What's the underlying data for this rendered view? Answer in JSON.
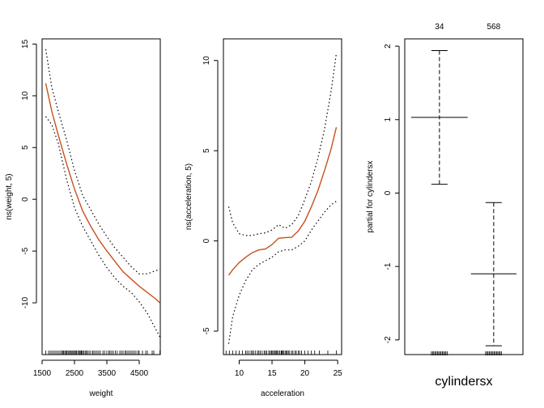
{
  "chart_data": [
    {
      "type": "line",
      "xlabel": "weight",
      "ylabel": "ns(weight, 5)",
      "xlim": [
        1500,
        5150
      ],
      "ylim": [
        -15,
        15.5
      ],
      "xticks": [
        1500,
        2500,
        3500,
        4500
      ],
      "xtick_labels": [
        "1500",
        "2500",
        "3500",
        "4500"
      ],
      "yticks": [
        -10,
        -5,
        0,
        5,
        10,
        15
      ],
      "ytick_labels": [
        "-10",
        "-5",
        "0",
        "5",
        "10",
        "15"
      ],
      "series": [
        {
          "role": "fit",
          "color": "#c8501e",
          "x": [
            1613,
            1800,
            2000,
            2250,
            2500,
            2750,
            3000,
            3250,
            3500,
            3750,
            4000,
            4250,
            4500,
            4750,
            5000,
            5140
          ],
          "y": [
            11.2,
            8.5,
            6.2,
            3.5,
            1.0,
            -1.1,
            -2.6,
            -3.9,
            -5.0,
            -6.0,
            -7.0,
            -7.7,
            -8.4,
            -9.0,
            -9.6,
            -10.0
          ]
        },
        {
          "role": "upper",
          "color": "#000000",
          "x": [
            1613,
            1800,
            2000,
            2250,
            2500,
            2750,
            3000,
            3250,
            3500,
            3750,
            4000,
            4250,
            4500,
            4750,
            5000,
            5140
          ],
          "y": [
            14.5,
            10.8,
            8.5,
            5.8,
            2.8,
            0.4,
            -1.0,
            -2.4,
            -3.6,
            -4.7,
            -5.6,
            -6.5,
            -7.2,
            -7.2,
            -6.9,
            -6.8
          ]
        },
        {
          "role": "lower",
          "color": "#000000",
          "x": [
            1613,
            1800,
            2000,
            2250,
            2500,
            2750,
            3000,
            3250,
            3500,
            3750,
            4000,
            4250,
            4500,
            4750,
            5000,
            5140
          ],
          "y": [
            8.0,
            7.2,
            5.4,
            2.0,
            -0.8,
            -2.6,
            -4.0,
            -5.4,
            -6.6,
            -7.6,
            -8.4,
            -9.0,
            -9.9,
            -11.0,
            -12.5,
            -13.3
          ]
        }
      ],
      "rug": [
        1613,
        1700,
        1750,
        1800,
        1850,
        1900,
        1950,
        2000,
        2050,
        2100,
        2130,
        2160,
        2200,
        2230,
        2265,
        2300,
        2330,
        2370,
        2400,
        2430,
        2470,
        2500,
        2530,
        2560,
        2600,
        2640,
        2670,
        2700,
        2720,
        2750,
        2790,
        2830,
        2870,
        2900,
        2950,
        3000,
        3060,
        3100,
        3150,
        3200,
        3250,
        3300,
        3380,
        3430,
        3500,
        3560,
        3600,
        3650,
        3700,
        3760,
        3820,
        3900,
        3950,
        4000,
        4060,
        4100,
        4150,
        4200,
        4250,
        4300,
        4350,
        4400,
        4460,
        4500,
        4600,
        4700,
        4750,
        4900,
        4950,
        5140
      ]
    },
    {
      "type": "line",
      "xlabel": "acceleration",
      "ylabel": "ns(acceleration, 5)",
      "xlim": [
        7.6,
        25.6
      ],
      "ylim": [
        -6.3,
        11.2
      ],
      "xticks": [
        10,
        15,
        20,
        25
      ],
      "xtick_labels": [
        "10",
        "15",
        "20",
        "25"
      ],
      "yticks": [
        -5,
        0,
        5,
        10
      ],
      "ytick_labels": [
        "-5",
        "0",
        "5",
        "10"
      ],
      "series": [
        {
          "role": "fit",
          "color": "#c8501e",
          "x": [
            8.4,
            9,
            10,
            11,
            12,
            13,
            14,
            15,
            16,
            17,
            18,
            19,
            20,
            21,
            22,
            23,
            24,
            24.8
          ],
          "y": [
            -1.9,
            -1.6,
            -1.2,
            -0.9,
            -0.65,
            -0.5,
            -0.45,
            -0.2,
            0.15,
            0.18,
            0.2,
            0.55,
            1.1,
            1.9,
            2.8,
            3.9,
            5.1,
            6.3
          ]
        },
        {
          "role": "upper",
          "color": "#000000",
          "x": [
            8.4,
            9,
            10,
            11,
            12,
            13,
            14,
            15,
            16,
            17,
            18,
            19,
            20,
            21,
            22,
            23,
            24,
            24.8
          ],
          "y": [
            1.9,
            1.0,
            0.4,
            0.3,
            0.3,
            0.4,
            0.45,
            0.6,
            0.9,
            0.7,
            0.9,
            1.4,
            2.3,
            3.3,
            4.6,
            6.2,
            8.3,
            10.4
          ]
        },
        {
          "role": "lower",
          "color": "#000000",
          "x": [
            8.4,
            9,
            10,
            11,
            12,
            13,
            14,
            15,
            16,
            17,
            18,
            19,
            20,
            21,
            22,
            23,
            24,
            24.8
          ],
          "y": [
            -5.7,
            -4.2,
            -3.0,
            -2.2,
            -1.6,
            -1.3,
            -1.1,
            -0.9,
            -0.6,
            -0.5,
            -0.5,
            -0.3,
            0.0,
            0.6,
            1.1,
            1.6,
            2.0,
            2.2
          ]
        }
      ],
      "rug": [
        8.0,
        8.5,
        9.0,
        9.5,
        10.0,
        10.5,
        11.0,
        11.2,
        11.5,
        11.8,
        12.0,
        12.2,
        12.5,
        12.8,
        13.0,
        13.2,
        13.5,
        13.8,
        14.0,
        14.2,
        14.5,
        14.7,
        14.9,
        15.0,
        15.2,
        15.4,
        15.5,
        15.7,
        15.8,
        16.0,
        16.2,
        16.4,
        16.5,
        16.6,
        16.8,
        17.0,
        17.2,
        17.3,
        17.5,
        17.7,
        18.0,
        18.2,
        18.5,
        18.7,
        19.0,
        19.2,
        19.5,
        20.0,
        20.5,
        21.0,
        21.5,
        22.2,
        23.5,
        24.8
      ]
    },
    {
      "type": "bar",
      "xlabel": "cylindersx",
      "ylabel": "partial for cylindersx",
      "categories": [
        "34",
        "568"
      ],
      "category_weights": [
        0.55,
        0.45
      ],
      "ylim": [
        -2.2,
        2.1
      ],
      "yticks": [
        -2,
        -1,
        0,
        1,
        2
      ],
      "ytick_labels": [
        "-2",
        "-1",
        "0",
        "1",
        "2"
      ],
      "estimates": [
        1.03,
        -1.1
      ],
      "upper": [
        1.94,
        -0.13
      ],
      "lower": [
        0.12,
        -2.08
      ],
      "rug_level": -2.2
    }
  ]
}
